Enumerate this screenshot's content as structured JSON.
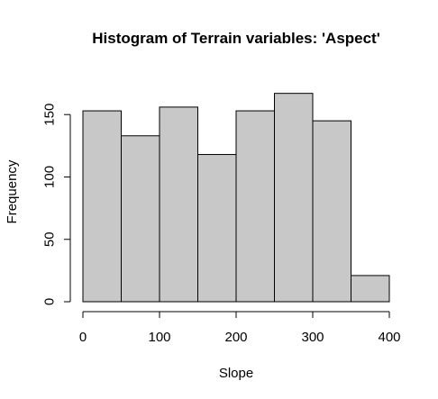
{
  "chart_data": {
    "type": "bar",
    "subtype": "histogram",
    "title": "Histogram of Terrain variables: 'Aspect'",
    "xlabel": "Slope",
    "ylabel": "Frequency",
    "bins": [
      {
        "start": 0,
        "end": 50,
        "count": 153
      },
      {
        "start": 50,
        "end": 100,
        "count": 133
      },
      {
        "start": 100,
        "end": 150,
        "count": 156
      },
      {
        "start": 150,
        "end": 200,
        "count": 118
      },
      {
        "start": 200,
        "end": 250,
        "count": 153
      },
      {
        "start": 250,
        "end": 300,
        "count": 167
      },
      {
        "start": 300,
        "end": 350,
        "count": 145
      },
      {
        "start": 350,
        "end": 400,
        "count": 21
      }
    ],
    "xlim": [
      0,
      400
    ],
    "ylim": [
      0,
      170
    ],
    "x_ticks": [
      0,
      100,
      200,
      300,
      400
    ],
    "y_ticks": [
      0,
      50,
      100,
      150
    ],
    "bar_fill": "#c8c8c8",
    "bar_stroke": "#000000",
    "grid": false,
    "legend": "none"
  }
}
